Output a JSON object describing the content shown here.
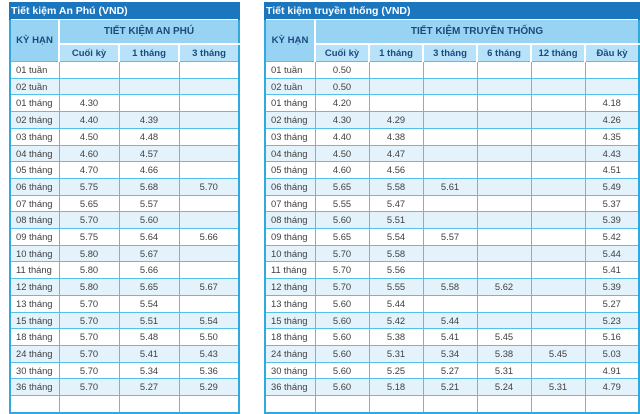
{
  "colors": {
    "title_bar": "#1C76BD",
    "header_band": "#99D3F4",
    "column_header": "#B8E2F9",
    "row_stripe": "#E4F2FB",
    "grid_border": "#54C0EB",
    "outer_border": "#2FA9E0",
    "header_text": "#1A4B7D",
    "body_text": "#3F3F3F"
  },
  "tables": [
    {
      "title": "Tiết kiệm An Phú (VND)",
      "term_header": "KỲ HẠN",
      "group_header": "TIẾT KIỆM AN PHÚ",
      "columns": [
        "Cuối kỳ",
        "1 tháng",
        "3 tháng"
      ],
      "rows": [
        {
          "term": "01 tuần",
          "values": [
            "",
            "",
            ""
          ]
        },
        {
          "term": "02 tuần",
          "values": [
            "",
            "",
            ""
          ]
        },
        {
          "term": "01 tháng",
          "values": [
            "4.30",
            "",
            ""
          ]
        },
        {
          "term": "02 tháng",
          "values": [
            "4.40",
            "4.39",
            ""
          ]
        },
        {
          "term": "03 tháng",
          "values": [
            "4.50",
            "4.48",
            ""
          ]
        },
        {
          "term": "04 tháng",
          "values": [
            "4.60",
            "4.57",
            ""
          ]
        },
        {
          "term": "05 tháng",
          "values": [
            "4.70",
            "4.66",
            ""
          ]
        },
        {
          "term": "06 tháng",
          "values": [
            "5.75",
            "5.68",
            "5.70"
          ]
        },
        {
          "term": "07 tháng",
          "values": [
            "5.65",
            "5.57",
            ""
          ]
        },
        {
          "term": "08 tháng",
          "values": [
            "5.70",
            "5.60",
            ""
          ]
        },
        {
          "term": "09 tháng",
          "values": [
            "5.75",
            "5.64",
            "5.66"
          ]
        },
        {
          "term": "10 tháng",
          "values": [
            "5.80",
            "5.67",
            ""
          ]
        },
        {
          "term": "11 tháng",
          "values": [
            "5.80",
            "5.66",
            ""
          ]
        },
        {
          "term": "12 tháng",
          "values": [
            "5.80",
            "5.65",
            "5.67"
          ]
        },
        {
          "term": "13 tháng",
          "values": [
            "5.70",
            "5.54",
            ""
          ]
        },
        {
          "term": "15 tháng",
          "values": [
            "5.70",
            "5.51",
            "5.54"
          ]
        },
        {
          "term": "18 tháng",
          "values": [
            "5.70",
            "5.48",
            "5.50"
          ]
        },
        {
          "term": "24 tháng",
          "values": [
            "5.70",
            "5.41",
            "5.43"
          ]
        },
        {
          "term": "30 tháng",
          "values": [
            "5.70",
            "5.34",
            "5.36"
          ]
        },
        {
          "term": "36 tháng",
          "values": [
            "5.70",
            "5.27",
            "5.29"
          ]
        }
      ]
    },
    {
      "title": "Tiết kiệm truyền thống (VND)",
      "term_header": "KỲ HẠN",
      "group_header": "TIẾT KIỆM TRUYỀN THỐNG",
      "columns": [
        "Cuối kỳ",
        "1 tháng",
        "3 tháng",
        "6 tháng",
        "12 tháng",
        "Đầu kỳ"
      ],
      "rows": [
        {
          "term": "01 tuần",
          "values": [
            "0.50",
            "",
            "",
            "",
            "",
            ""
          ]
        },
        {
          "term": "02 tuần",
          "values": [
            "0.50",
            "",
            "",
            "",
            "",
            ""
          ]
        },
        {
          "term": "01 tháng",
          "values": [
            "4.20",
            "",
            "",
            "",
            "",
            "4.18"
          ]
        },
        {
          "term": "02 tháng",
          "values": [
            "4.30",
            "4.29",
            "",
            "",
            "",
            "4.26"
          ]
        },
        {
          "term": "03 tháng",
          "values": [
            "4.40",
            "4.38",
            "",
            "",
            "",
            "4.35"
          ]
        },
        {
          "term": "04 tháng",
          "values": [
            "4.50",
            "4.47",
            "",
            "",
            "",
            "4.43"
          ]
        },
        {
          "term": "05 tháng",
          "values": [
            "4.60",
            "4.56",
            "",
            "",
            "",
            "4.51"
          ]
        },
        {
          "term": "06 tháng",
          "values": [
            "5.65",
            "5.58",
            "5.61",
            "",
            "",
            "5.49"
          ]
        },
        {
          "term": "07 tháng",
          "values": [
            "5.55",
            "5.47",
            "",
            "",
            "",
            "5.37"
          ]
        },
        {
          "term": "08 tháng",
          "values": [
            "5.60",
            "5.51",
            "",
            "",
            "",
            "5.39"
          ]
        },
        {
          "term": "09 tháng",
          "values": [
            "5.65",
            "5.54",
            "5.57",
            "",
            "",
            "5.42"
          ]
        },
        {
          "term": "10 tháng",
          "values": [
            "5.70",
            "5.58",
            "",
            "",
            "",
            "5.44"
          ]
        },
        {
          "term": "11 tháng",
          "values": [
            "5.70",
            "5.56",
            "",
            "",
            "",
            "5.41"
          ]
        },
        {
          "term": "12 tháng",
          "values": [
            "5.70",
            "5.55",
            "5.58",
            "5.62",
            "",
            "5.39"
          ]
        },
        {
          "term": "13 tháng",
          "values": [
            "5.60",
            "5.44",
            "",
            "",
            "",
            "5.27"
          ]
        },
        {
          "term": "15 tháng",
          "values": [
            "5.60",
            "5.42",
            "5.44",
            "",
            "",
            "5.23"
          ]
        },
        {
          "term": "18 tháng",
          "values": [
            "5.60",
            "5.38",
            "5.41",
            "5.45",
            "",
            "5.16"
          ]
        },
        {
          "term": "24 tháng",
          "values": [
            "5.60",
            "5.31",
            "5.34",
            "5.38",
            "5.45",
            "5.03"
          ]
        },
        {
          "term": "30 tháng",
          "values": [
            "5.60",
            "5.25",
            "5.27",
            "5.31",
            "",
            "4.91"
          ]
        },
        {
          "term": "36 tháng",
          "values": [
            "5.60",
            "5.18",
            "5.21",
            "5.24",
            "5.31",
            "4.79"
          ]
        }
      ]
    }
  ]
}
